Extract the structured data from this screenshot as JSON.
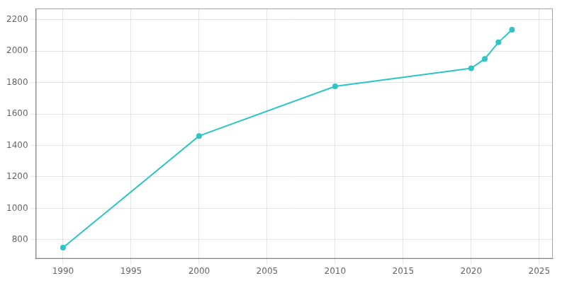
{
  "chart_data": {
    "type": "line",
    "x": [
      1990,
      2000,
      2010,
      2020,
      2021,
      2022,
      2023
    ],
    "values": [
      750,
      1460,
      1775,
      1890,
      1950,
      2055,
      2135
    ],
    "color": "#2dc5c5",
    "marker": "circle",
    "xlim": [
      1988,
      2026
    ],
    "ylim": [
      680,
      2270
    ],
    "xticks": [
      1990,
      1995,
      2000,
      2005,
      2010,
      2015,
      2020,
      2025
    ],
    "yticks": [
      800,
      1000,
      1200,
      1400,
      1600,
      1800,
      2000,
      2200
    ],
    "grid": true
  }
}
